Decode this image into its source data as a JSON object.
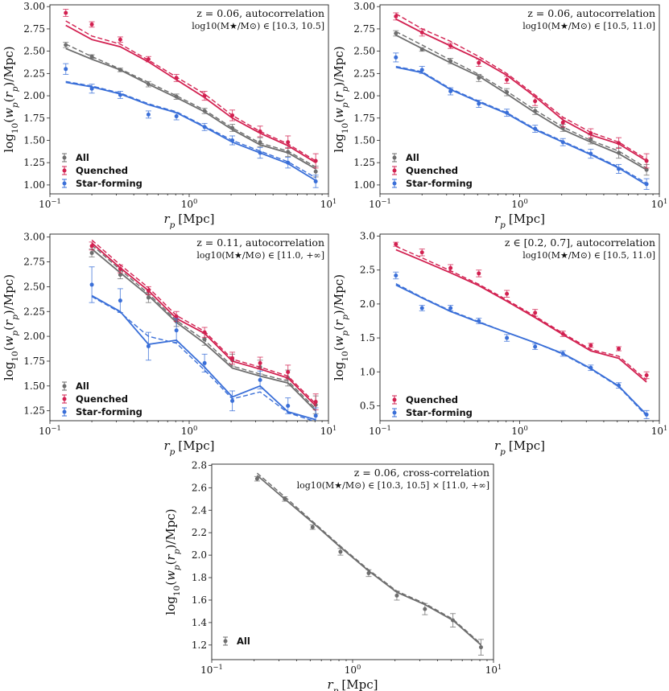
{
  "figure": {
    "xlabel_base": "r",
    "xlabel_sub": "p",
    "xlabel_unit": "[Mpc]",
    "ylabel": "log10(wp(rp)/Mpc)",
    "ylabel_parts": {
      "log": "log",
      "log_sub": "10",
      "w": "w",
      "w_sub": "p",
      "r": "r",
      "r_sub": "p",
      "unit": "/Mpc)"
    }
  },
  "colors": {
    "All": "#6e6e6e",
    "Quenched": "#d22050",
    "Star-forming": "#3a6fd8"
  },
  "chart_data": [
    {
      "type": "line",
      "id": "p1",
      "title_line1": "z = 0.06, autocorrelation",
      "title_line2": "log10(M★/M⊙) ∈ [10.3, 10.5]",
      "xlabel": "rp [Mpc]",
      "ylabel": "log10(wp(rp)/Mpc)",
      "xscale": "log",
      "xlim": [
        0.1,
        10
      ],
      "ylim": [
        0.9,
        3.02
      ],
      "xticks": [
        {
          "v": 0.1,
          "label": "10⁻¹"
        },
        {
          "v": 1,
          "label": "10⁰"
        },
        {
          "v": 10,
          "label": "10¹"
        }
      ],
      "yticks": [
        1.0,
        1.25,
        1.5,
        1.75,
        2.0,
        2.25,
        2.5,
        2.75,
        3.0
      ],
      "ytick_labels": [
        "1.00",
        "1.25",
        "1.50",
        "1.75",
        "2.00",
        "2.25",
        "2.50",
        "2.75",
        "3.00"
      ],
      "legend": [
        "All",
        "Quenched",
        "Star-forming"
      ],
      "x": [
        0.13,
        0.2,
        0.32,
        0.51,
        0.81,
        1.29,
        2.04,
        3.23,
        5.12,
        8.1
      ],
      "series": [
        {
          "name": "All",
          "points": [
            2.57,
            2.44,
            2.29,
            2.13,
            1.99,
            1.83,
            1.64,
            1.48,
            1.37,
            1.15
          ],
          "errors": [
            0.03,
            0.02,
            0.02,
            0.03,
            0.03,
            0.03,
            0.04,
            0.05,
            0.05,
            0.06
          ],
          "model_solid": [
            2.53,
            2.41,
            2.29,
            2.13,
            1.98,
            1.82,
            1.62,
            1.45,
            1.36,
            1.18
          ],
          "model_dashed": [
            2.58,
            2.44,
            2.3,
            2.15,
            2.0,
            1.84,
            1.64,
            1.47,
            1.38,
            1.2
          ]
        },
        {
          "name": "Quenched",
          "points": [
            2.93,
            2.8,
            2.63,
            2.41,
            2.2,
            2.0,
            1.78,
            1.6,
            1.48,
            1.27
          ],
          "errors": [
            0.04,
            0.03,
            0.03,
            0.03,
            0.04,
            0.05,
            0.06,
            0.06,
            0.07,
            0.08
          ],
          "model_solid": [
            2.79,
            2.63,
            2.55,
            2.38,
            2.18,
            1.98,
            1.75,
            1.58,
            1.44,
            1.25
          ],
          "model_dashed": [
            2.84,
            2.67,
            2.58,
            2.4,
            2.21,
            2.02,
            1.78,
            1.6,
            1.46,
            1.27
          ]
        },
        {
          "name": "Star-forming",
          "points": [
            2.3,
            2.08,
            2.01,
            1.79,
            1.77,
            1.65,
            1.5,
            1.36,
            1.25,
            1.04
          ],
          "errors": [
            0.06,
            0.05,
            0.04,
            0.04,
            0.04,
            0.04,
            0.05,
            0.06,
            0.06,
            0.07
          ],
          "model_solid": [
            2.15,
            2.1,
            2.02,
            1.9,
            1.81,
            1.65,
            1.48,
            1.36,
            1.24,
            1.05
          ],
          "model_dashed": [
            2.16,
            2.11,
            2.03,
            1.91,
            1.82,
            1.66,
            1.5,
            1.38,
            1.26,
            1.08
          ]
        }
      ]
    },
    {
      "type": "line",
      "id": "p2",
      "title_line1": "z = 0.06, autocorrelation",
      "title_line2": "log10(M★/M⊙) ∈ [10.5, 11.0]",
      "xlabel": "rp [Mpc]",
      "ylabel": "log10(wp(rp)/Mpc)",
      "xscale": "log",
      "xlim": [
        0.1,
        10
      ],
      "ylim": [
        0.9,
        3.02
      ],
      "xticks": [
        {
          "v": 0.1,
          "label": "10⁻¹"
        },
        {
          "v": 1,
          "label": "10⁰"
        },
        {
          "v": 10,
          "label": "10¹"
        }
      ],
      "yticks": [
        1.0,
        1.25,
        1.5,
        1.75,
        2.0,
        2.25,
        2.5,
        2.75,
        3.0
      ],
      "ytick_labels": [
        "1.00",
        "1.25",
        "1.50",
        "1.75",
        "2.00",
        "2.25",
        "2.50",
        "2.75",
        "3.00"
      ],
      "legend": [
        "All",
        "Quenched",
        "Star-forming"
      ],
      "x": [
        0.13,
        0.2,
        0.32,
        0.51,
        0.81,
        1.29,
        2.04,
        3.23,
        5.12,
        8.1
      ],
      "series": [
        {
          "name": "All",
          "points": [
            2.7,
            2.52,
            2.39,
            2.2,
            2.04,
            1.83,
            1.64,
            1.51,
            1.36,
            1.17
          ],
          "errors": [
            0.03,
            0.02,
            0.03,
            0.04,
            0.04,
            0.04,
            0.04,
            0.05,
            0.06,
            0.06
          ],
          "model_solid": [
            2.68,
            2.53,
            2.37,
            2.22,
            2.02,
            1.81,
            1.62,
            1.48,
            1.35,
            1.17
          ],
          "model_dashed": [
            2.72,
            2.57,
            2.4,
            2.24,
            2.05,
            1.84,
            1.65,
            1.5,
            1.38,
            1.19
          ]
        },
        {
          "name": "Quenched",
          "points": [
            2.89,
            2.71,
            2.56,
            2.37,
            2.18,
            1.94,
            1.7,
            1.58,
            1.47,
            1.27
          ],
          "errors": [
            0.04,
            0.04,
            0.03,
            0.04,
            0.04,
            0.05,
            0.05,
            0.05,
            0.06,
            0.08
          ],
          "model_solid": [
            2.86,
            2.71,
            2.56,
            2.41,
            2.23,
            1.99,
            1.73,
            1.56,
            1.46,
            1.27
          ],
          "model_dashed": [
            2.92,
            2.75,
            2.61,
            2.44,
            2.25,
            2.01,
            1.76,
            1.59,
            1.48,
            1.29
          ]
        },
        {
          "name": "Star-forming",
          "points": [
            2.43,
            2.29,
            2.05,
            1.91,
            1.81,
            1.63,
            1.48,
            1.35,
            1.18,
            1.01
          ],
          "errors": [
            0.05,
            0.04,
            0.04,
            0.04,
            0.04,
            0.04,
            0.04,
            0.05,
            0.05,
            0.06
          ],
          "model_solid": [
            2.32,
            2.26,
            2.07,
            1.93,
            1.8,
            1.62,
            1.48,
            1.34,
            1.19,
            1.0
          ],
          "model_dashed": [
            2.33,
            2.27,
            2.08,
            1.94,
            1.81,
            1.63,
            1.49,
            1.35,
            1.2,
            1.02
          ]
        }
      ]
    },
    {
      "type": "line",
      "id": "p3",
      "title_line1": "z = 0.11, autocorrelation",
      "title_line2": "log10(M★/M⊙) ∈ [11.0, +∞]",
      "xlabel": "rp [Mpc]",
      "ylabel": "log10(wp(rp)/Mpc)",
      "xscale": "log",
      "xlim": [
        0.1,
        10
      ],
      "ylim": [
        1.15,
        3.03
      ],
      "xticks": [
        {
          "v": 0.1,
          "label": "10⁻¹"
        },
        {
          "v": 1,
          "label": "10⁰"
        },
        {
          "v": 10,
          "label": "10¹"
        }
      ],
      "yticks": [
        1.25,
        1.5,
        1.75,
        2.0,
        2.25,
        2.5,
        2.75,
        3.0
      ],
      "ytick_labels": [
        "1.25",
        "1.50",
        "1.75",
        "2.00",
        "2.25",
        "2.50",
        "2.75",
        "3.00"
      ],
      "legend": [
        "All",
        "Quenched",
        "Star-forming"
      ],
      "x": [
        0.2,
        0.32,
        0.51,
        0.81,
        1.29,
        2.04,
        3.23,
        5.12,
        8.1
      ],
      "series": [
        {
          "name": "All",
          "points": [
            2.84,
            2.62,
            2.39,
            2.15,
            1.97,
            1.76,
            1.69,
            1.58,
            1.31
          ],
          "errors": [
            0.04,
            0.04,
            0.05,
            0.05,
            0.06,
            0.06,
            0.07,
            0.08,
            0.09
          ],
          "model_solid": [
            2.88,
            2.64,
            2.41,
            2.14,
            1.93,
            1.68,
            1.6,
            1.53,
            1.25
          ],
          "model_dashed": [
            2.92,
            2.67,
            2.43,
            2.16,
            1.96,
            1.7,
            1.62,
            1.55,
            1.27
          ]
        },
        {
          "name": "Quenched",
          "points": [
            2.91,
            2.68,
            2.46,
            2.2,
            2.04,
            1.78,
            1.73,
            1.64,
            1.34
          ],
          "errors": [
            0.04,
            0.04,
            0.04,
            0.05,
            0.05,
            0.06,
            0.06,
            0.07,
            0.08
          ],
          "model_solid": [
            2.94,
            2.69,
            2.46,
            2.18,
            2.03,
            1.75,
            1.67,
            1.58,
            1.3
          ],
          "model_dashed": [
            2.97,
            2.72,
            2.49,
            2.21,
            2.05,
            1.77,
            1.69,
            1.6,
            1.32
          ]
        },
        {
          "name": "Star-forming",
          "points": [
            2.52,
            2.36,
            1.9,
            2.06,
            1.73,
            1.35,
            1.56,
            1.3,
            1.2
          ],
          "errors": [
            0.18,
            0.12,
            0.14,
            0.12,
            0.09,
            0.1,
            0.09,
            0.08,
            0.08
          ],
          "model_solid": [
            2.41,
            2.25,
            1.92,
            1.96,
            1.69,
            1.39,
            1.5,
            1.24,
            1.16
          ],
          "model_dashed": [
            2.4,
            2.24,
            2.0,
            1.93,
            1.66,
            1.37,
            1.44,
            1.23,
            1.14
          ]
        }
      ]
    },
    {
      "type": "line",
      "id": "p4",
      "title_line1": "z ∈ [0.2, 0.7], autocorrelation",
      "title_line2": "log10(M★/M⊙) ∈ [10.5, 11.0]",
      "xlabel": "rp [Mpc]",
      "ylabel": "log10(wp(rp)/Mpc)",
      "xscale": "log",
      "xlim": [
        0.1,
        10
      ],
      "ylim": [
        0.28,
        3.03
      ],
      "xticks": [
        {
          "v": 0.1,
          "label": "10⁻¹"
        },
        {
          "v": 1,
          "label": "10⁰"
        },
        {
          "v": 10,
          "label": "10¹"
        }
      ],
      "yticks": [
        0.5,
        1.0,
        1.5,
        2.0,
        2.5,
        3.0
      ],
      "ytick_labels": [
        "0.5",
        "1.0",
        "1.5",
        "2.0",
        "2.5",
        "3.0"
      ],
      "legend": [
        "Quenched",
        "Star-forming"
      ],
      "x": [
        0.13,
        0.2,
        0.32,
        0.51,
        0.81,
        1.29,
        2.04,
        3.23,
        5.12,
        8.1
      ],
      "series": [
        {
          "name": "Quenched",
          "points": [
            2.88,
            2.76,
            2.53,
            2.45,
            2.15,
            1.87,
            1.56,
            1.39,
            1.34,
            0.95
          ],
          "errors": [
            0.03,
            0.05,
            0.05,
            0.05,
            0.05,
            0.05,
            0.04,
            0.03,
            0.03,
            0.05
          ],
          "model_solid": [
            2.8,
            2.64,
            2.46,
            2.27,
            2.04,
            1.8,
            1.55,
            1.31,
            1.2,
            0.85
          ],
          "model_dashed": [
            2.85,
            2.68,
            2.49,
            2.29,
            2.06,
            1.82,
            1.57,
            1.33,
            1.23,
            0.88
          ]
        },
        {
          "name": "Star-forming",
          "points": [
            2.42,
            1.94,
            1.94,
            1.75,
            1.5,
            1.37,
            1.27,
            1.06,
            0.8,
            0.37
          ],
          "errors": [
            0.05,
            0.04,
            0.04,
            0.04,
            0.05,
            0.04,
            0.04,
            0.04,
            0.04,
            0.06
          ],
          "model_solid": [
            2.28,
            2.09,
            1.89,
            1.73,
            1.58,
            1.43,
            1.27,
            1.05,
            0.79,
            0.37
          ],
          "model_dashed": [
            2.3,
            2.1,
            1.9,
            1.74,
            1.58,
            1.43,
            1.26,
            1.04,
            0.78,
            0.35
          ]
        }
      ]
    },
    {
      "type": "line",
      "id": "p5",
      "title_line1": "z = 0.06, cross-correlation",
      "title_line2": "log10(M★/M⊙) ∈ [10.3, 10.5] × [11.0, +∞]",
      "xlabel": "rp [Mpc]",
      "ylabel": "log10(wp(rp)/Mpc)",
      "xscale": "log",
      "xlim": [
        0.1,
        10
      ],
      "ylim": [
        1.07,
        2.81
      ],
      "xticks": [
        {
          "v": 0.1,
          "label": "10⁻¹"
        },
        {
          "v": 1,
          "label": "10⁰"
        },
        {
          "v": 10,
          "label": "10¹"
        }
      ],
      "yticks": [
        1.2,
        1.4,
        1.6,
        1.8,
        2.0,
        2.2,
        2.4,
        2.6,
        2.8
      ],
      "ytick_labels": [
        "1.2",
        "1.4",
        "1.6",
        "1.8",
        "2.0",
        "2.2",
        "2.4",
        "2.6",
        "2.8"
      ],
      "legend": [
        "All"
      ],
      "x": [
        0.21,
        0.33,
        0.52,
        0.82,
        1.3,
        2.06,
        3.26,
        5.15,
        8.15
      ],
      "series": [
        {
          "name": "All",
          "points": [
            2.68,
            2.5,
            2.25,
            2.03,
            1.84,
            1.64,
            1.52,
            1.42,
            1.18
          ],
          "errors": [
            0.02,
            0.02,
            0.02,
            0.03,
            0.03,
            0.04,
            0.05,
            0.06,
            0.07
          ],
          "model_solid": [
            2.71,
            2.5,
            2.29,
            2.07,
            1.86,
            1.67,
            1.56,
            1.42,
            1.2
          ],
          "model_dashed": [
            2.73,
            2.52,
            2.3,
            2.08,
            1.87,
            1.68,
            1.57,
            1.43,
            1.21
          ]
        }
      ]
    }
  ]
}
